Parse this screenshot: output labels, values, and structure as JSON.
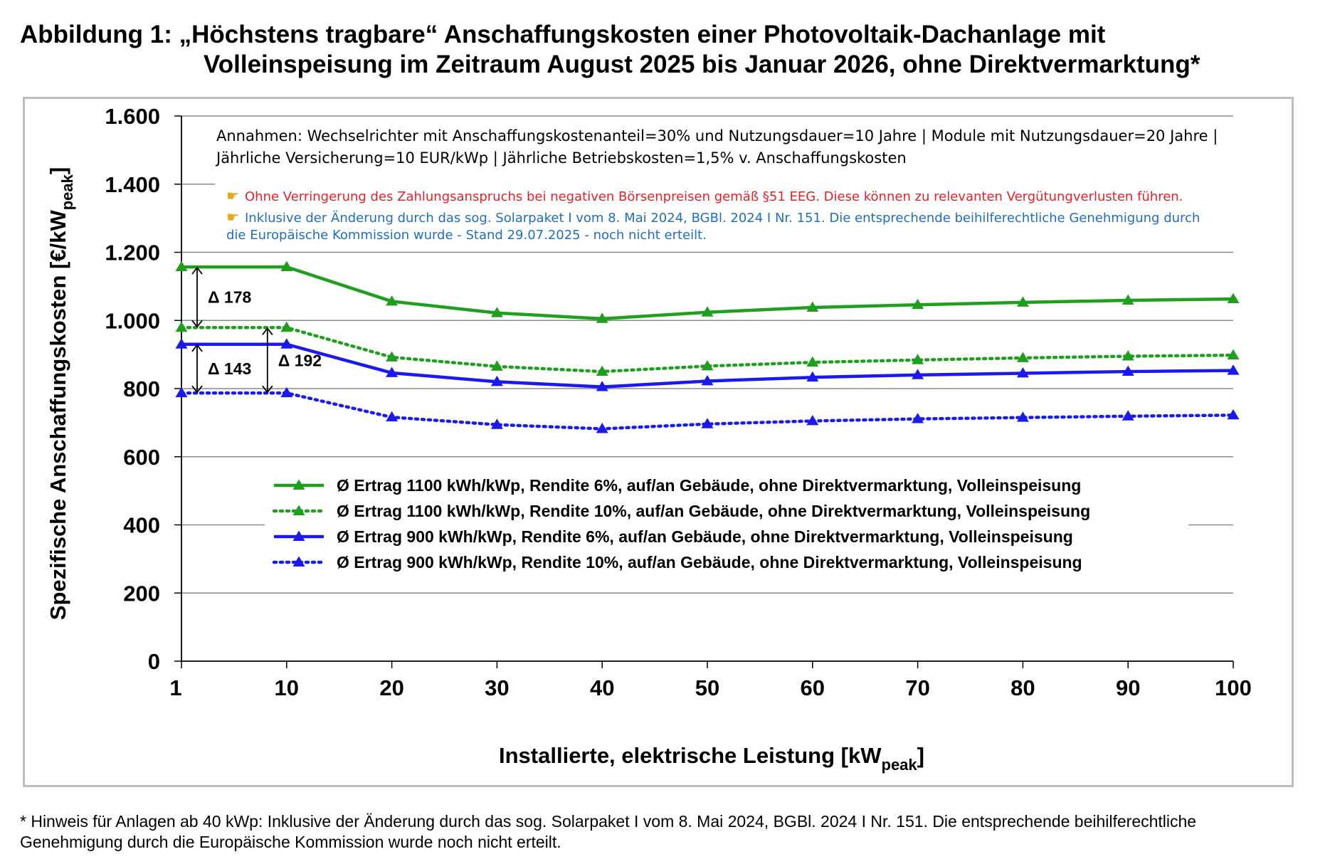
{
  "title": {
    "line1": "Abbildung 1: „Höchstens tragbare“ Anschaffungskosten einer Photovoltaik-Dachanlage mit",
    "line2": "Volleinspeisung im Zeitraum August 2025 bis Januar 2026, ohne Direktvermarktung*"
  },
  "annotations": {
    "assumptions_line1": "Annahmen: Wechselrichter mit Anschaffungskostenanteil=30% und Nutzungsdauer=10 Jahre | Module mit Nutzungsdauer=20 Jahre |",
    "assumptions_line2": "Jährliche Versicherung=10 EUR/kWp | Jährliche Betriebskosten=1,5% v. Anschaffungskosten",
    "note_red": "Ohne Verringerung des Zahlungsanspruchs bei negativen Börsenpreisen gemäß §51 EEG. Diese können zu relevanten Vergütungverlusten führen.",
    "note_blue_line1": "Inklusive der Änderung durch das sog. Solarpaket I vom 8. Mai 2024, BGBl. 2024 I Nr. 151. Die entsprechende beihilferechtliche Genehmigung durch",
    "note_blue_line2": "die Europäische Kommission wurde - Stand 29.07.2025 - noch nicht erteilt.",
    "note_red_color": "#e8202a",
    "note_blue_color": "#1f6fc0",
    "hand_icon": "pointing-hand-icon"
  },
  "deltas": [
    {
      "label": "Δ 178",
      "x": 1,
      "from": 1157,
      "to": 979
    },
    {
      "label": "Δ 143",
      "x": 1,
      "from": 930,
      "to": 787
    },
    {
      "label": "Δ 192",
      "x": 10,
      "from": 979,
      "to": 787
    }
  ],
  "footnote": {
    "line1": "* Hinweis für Anlagen ab 40 kWp: Inklusive der Änderung durch das sog. Solarpaket I vom 8. Mai 2024, BGBl. 2024 I Nr. 151. Die entsprechende beihilferechtliche",
    "line2": "Genehmigung durch die Europäische Kommission wurde noch nicht erteilt."
  },
  "chart_data": {
    "type": "line",
    "xlabel": "Installierte, elektrische Leistung [kW",
    "xlabel_sub": "peak",
    "xlabel_end": "]",
    "ylabel": "Spezifische Anschaffungskosten [€/kW",
    "ylabel_sub": "peak",
    "ylabel_end": "]",
    "x": [
      1,
      10,
      20,
      30,
      40,
      50,
      60,
      70,
      80,
      90,
      100
    ],
    "x_tick_labels": [
      "1",
      "10",
      "20",
      "30",
      "40",
      "50",
      "60",
      "70",
      "80",
      "90",
      "100"
    ],
    "ylim": [
      0,
      1600
    ],
    "y_ticks": [
      0,
      200,
      400,
      600,
      800,
      1000,
      1200,
      1400,
      1600
    ],
    "y_tick_labels": [
      "0",
      "200",
      "400",
      "600",
      "800",
      "1.000",
      "1.200",
      "1.400",
      "1.600"
    ],
    "grid": true,
    "legend_placement": "lower-center",
    "series": [
      {
        "name": "Ø Ertrag  1100 kWh/kWp, Rendite 6%, auf/an Gebäude, ohne Direktvermarktung, Volleinspeisung",
        "color": "#1ea01e",
        "dash": "solid",
        "values": [
          1157,
          1157,
          1056,
          1022,
          1005,
          1024,
          1038,
          1046,
          1053,
          1059,
          1063
        ]
      },
      {
        "name": "Ø Ertrag  1100 kWh/kWp, Rendite 10%, auf/an Gebäude, ohne Direktvermarktung, Volleinspeisung",
        "color": "#1ea01e",
        "dash": "dotted",
        "values": [
          979,
          979,
          892,
          865,
          850,
          866,
          877,
          884,
          890,
          895,
          898
        ]
      },
      {
        "name": "Ø Ertrag  900 kWh/kWp, Rendite 6%, auf/an Gebäude, ohne Direktvermarktung, Volleinspeisung",
        "color": "#1a1aee",
        "dash": "solid",
        "values": [
          930,
          930,
          846,
          820,
          805,
          822,
          833,
          840,
          845,
          850,
          853
        ]
      },
      {
        "name": "Ø Ertrag  900 kWh/kWp, Rendite 10%, auf/an Gebäude, ohne Direktvermarktung, Volleinspeisung",
        "color": "#1a1aee",
        "dash": "dotted",
        "values": [
          787,
          787,
          716,
          694,
          682,
          696,
          705,
          711,
          715,
          719,
          722
        ]
      }
    ]
  }
}
